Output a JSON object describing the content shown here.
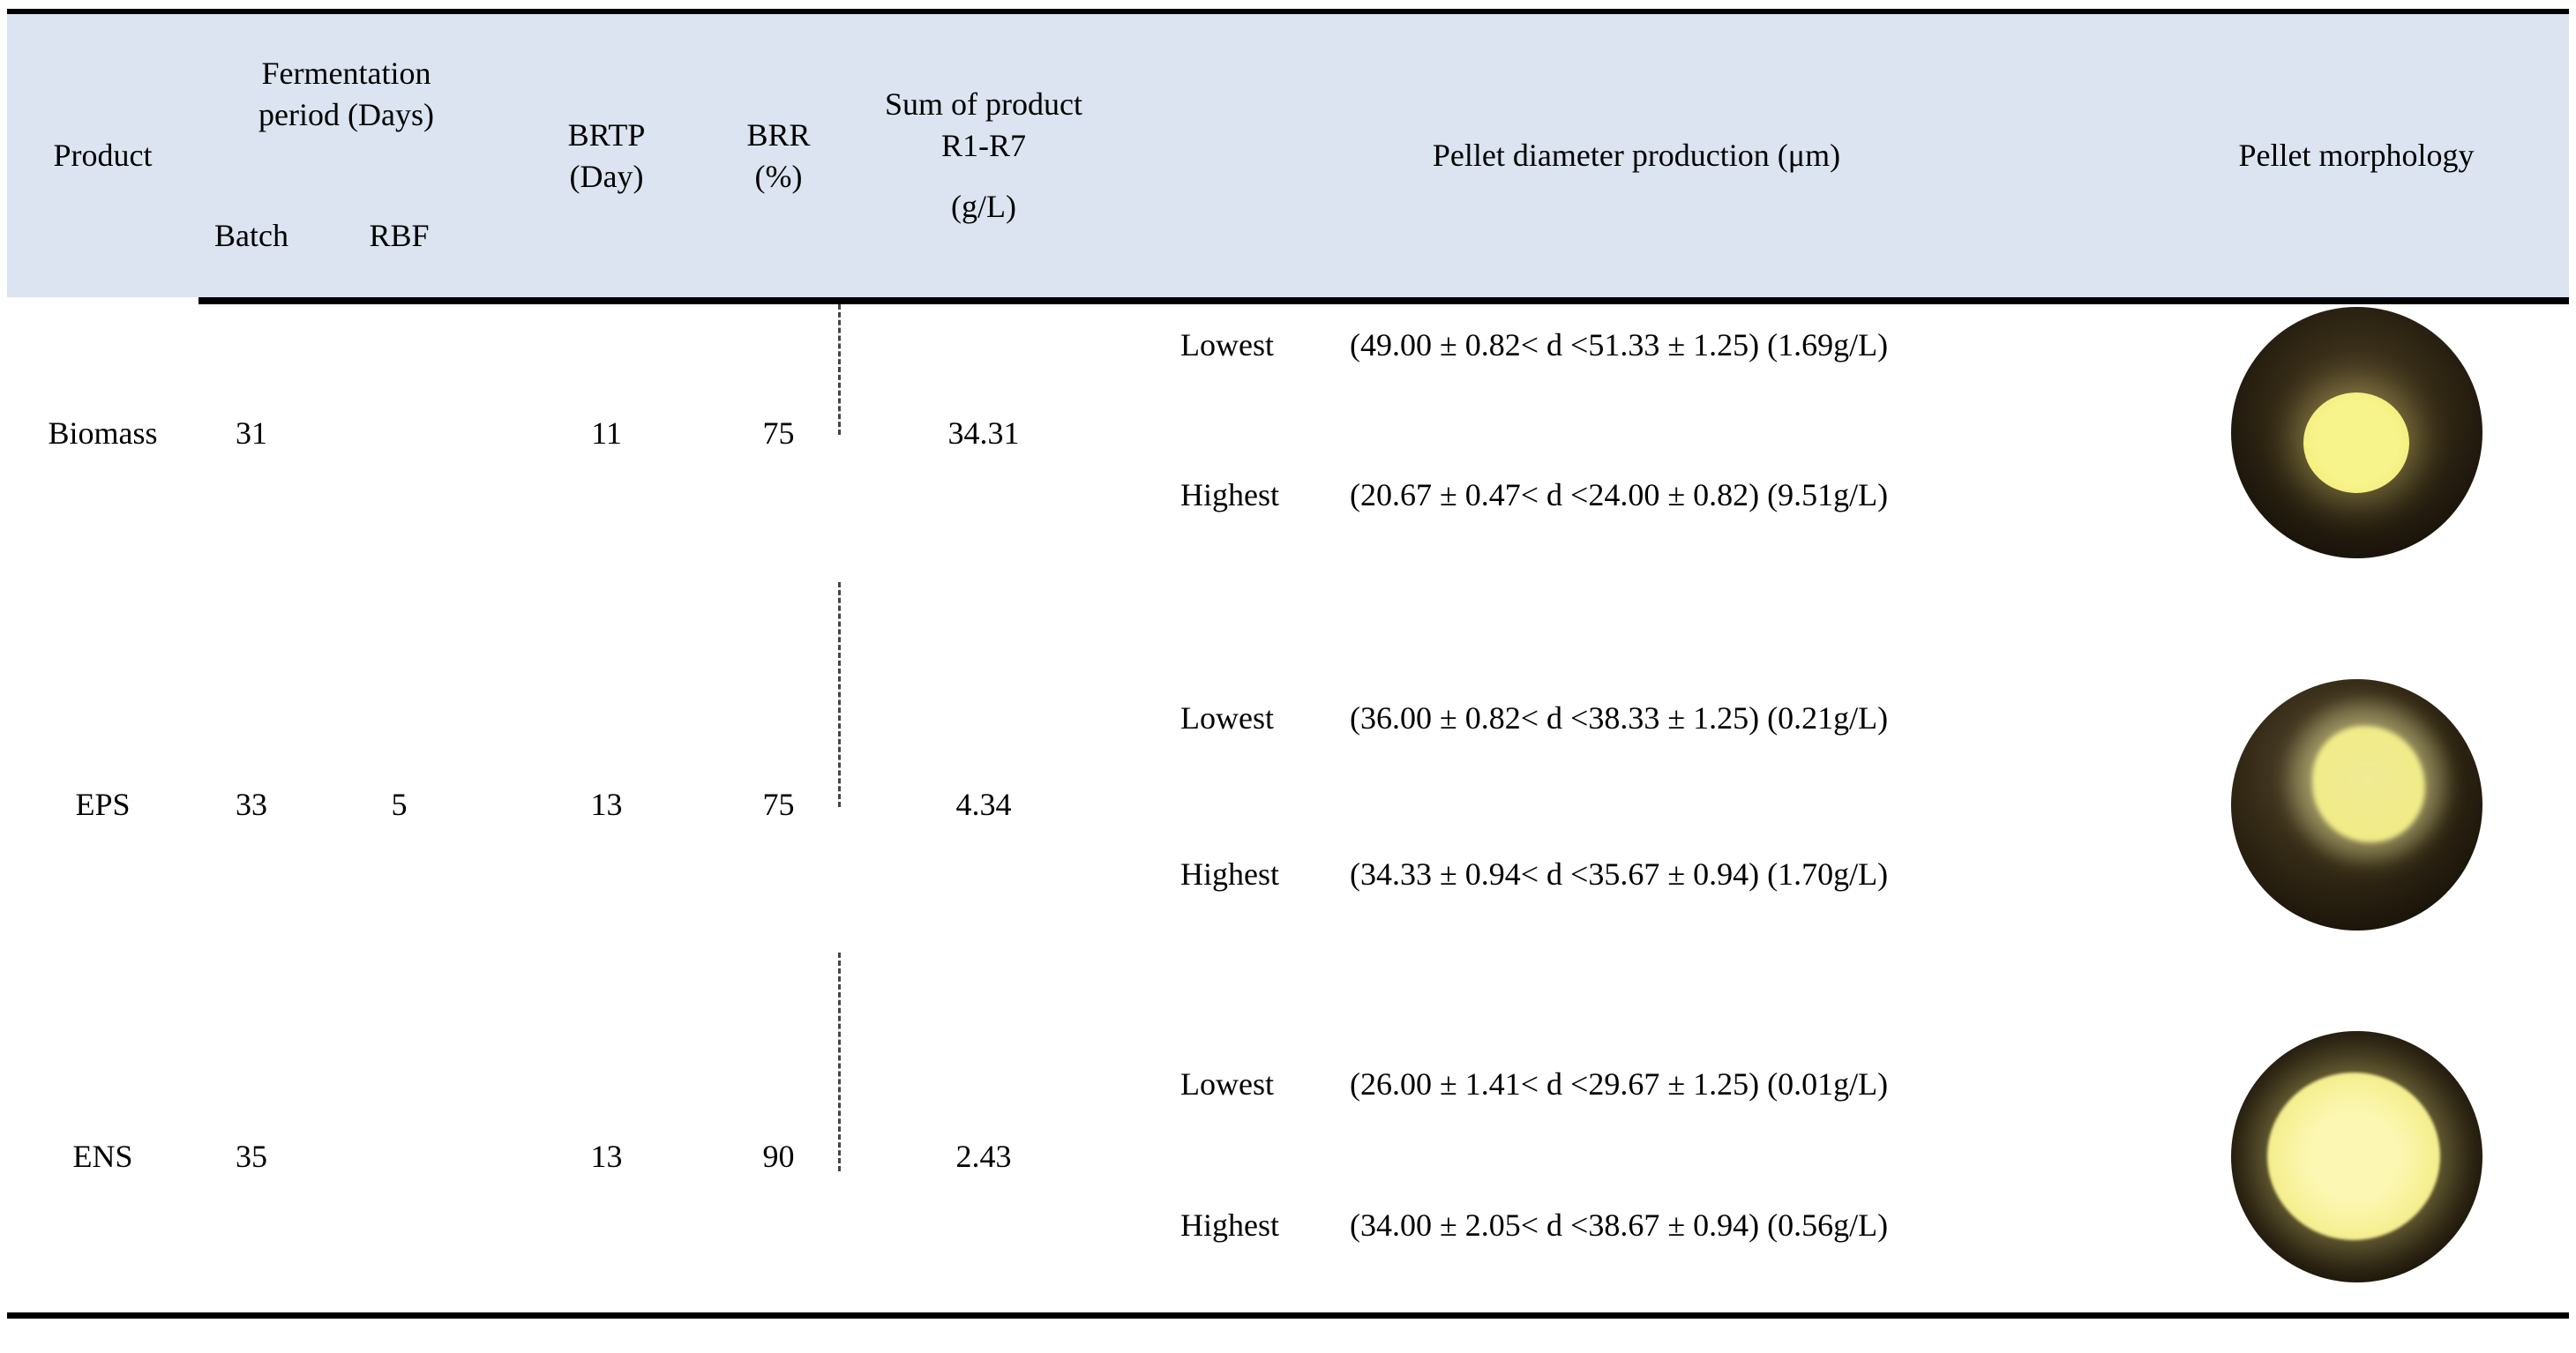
{
  "table": {
    "header": {
      "product": "Product",
      "fermentation_period": "Fermentation period (Days)",
      "batch": "Batch",
      "rbf": "RBF",
      "brtp_lines": [
        "BRTP",
        "(Day)"
      ],
      "brr_lines": [
        "BRR",
        "(%)"
      ],
      "sum_lines": [
        "Sum of product",
        "R1-R7",
        "(g/L)"
      ],
      "pellet_diameter": "Pellet diameter production (μm)",
      "pellet_morphology": "Pellet morphology"
    },
    "rows": [
      {
        "product": "Biomass",
        "batch": "31",
        "rbf": "",
        "brtp": "11",
        "brr": "75",
        "sum": "34.31",
        "lowest_label": "Lowest",
        "lowest_value": "(49.00 ± 0.82< d <51.33 ± 1.25) (1.69g/L)",
        "highest_label": "Highest",
        "highest_value": "(20.67 ± 0.47< d <24.00 ± 0.82) (9.51g/L)"
      },
      {
        "product": "EPS",
        "batch": "33",
        "rbf": "5",
        "brtp": "13",
        "brr": "75",
        "sum": "4.34",
        "lowest_label": "Lowest",
        "lowest_value": "(36.00 ± 0.82< d <38.33 ± 1.25) (0.21g/L)",
        "highest_label": "Highest",
        "highest_value": "(34.33 ± 0.94< d <35.67 ± 0.94) (1.70g/L)"
      },
      {
        "product": "ENS",
        "batch": "35",
        "rbf": "",
        "brtp": "13",
        "brr": "90",
        "sum": "2.43",
        "lowest_label": "Lowest",
        "lowest_value": "(26.00 ± 1.41< d <29.67 ± 1.25) (0.01g/L)",
        "highest_label": "Highest",
        "highest_value": "(34.00 ± 2.05< d <38.67 ± 0.94) (0.56g/L)"
      }
    ]
  },
  "colors": {
    "header_bg": "#dbe4f0",
    "rule": "#000000",
    "pellet_yellow": "#f2ee7e",
    "pellet_dark": "#1c150b"
  }
}
